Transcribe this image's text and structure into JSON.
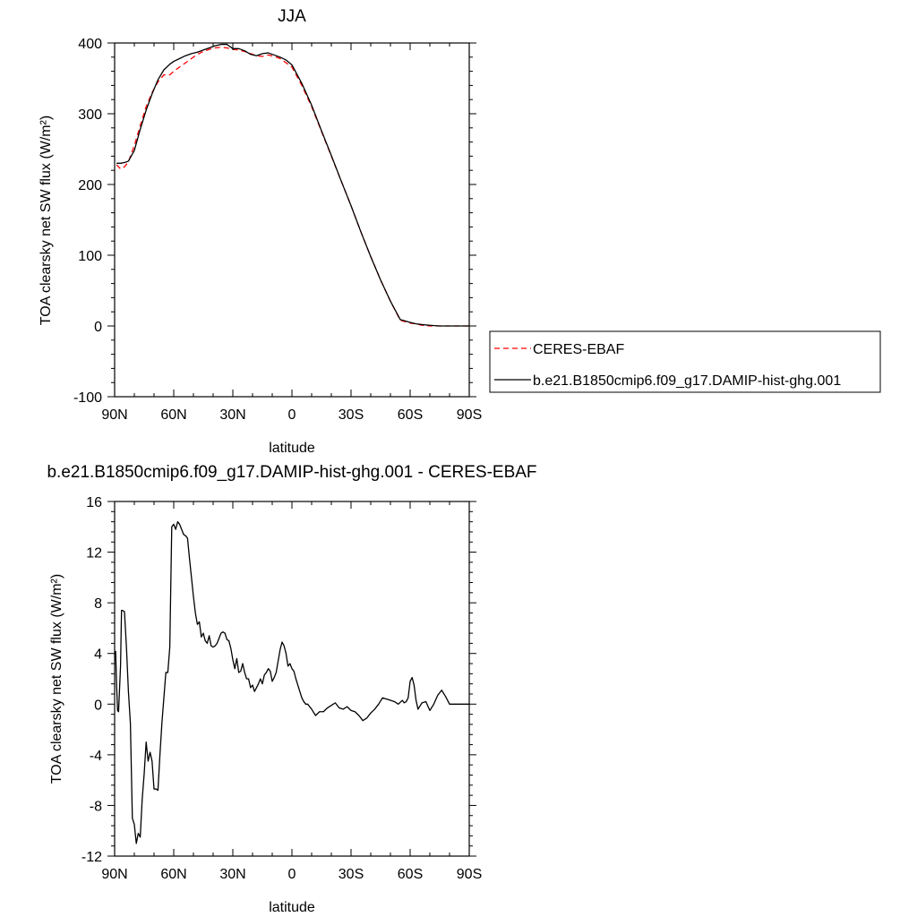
{
  "chart_data": [
    {
      "type": "line",
      "title": "JJA",
      "xlabel": "latitude",
      "ylabel": "TOA clearsky net SW flux (W/m²)",
      "xlim": [
        90,
        -90
      ],
      "ylim": [
        -100,
        400
      ],
      "x_ticks": [
        {
          "value": 90,
          "label": "90N"
        },
        {
          "value": 60,
          "label": "60N"
        },
        {
          "value": 30,
          "label": "30N"
        },
        {
          "value": 0,
          "label": "0"
        },
        {
          "value": -30,
          "label": "30S"
        },
        {
          "value": -60,
          "label": "60S"
        },
        {
          "value": -90,
          "label": "90S"
        }
      ],
      "y_ticks": [
        {
          "value": 400,
          "label": "400"
        },
        {
          "value": 300,
          "label": "300"
        },
        {
          "value": 200,
          "label": "200"
        },
        {
          "value": 100,
          "label": "100"
        },
        {
          "value": 0,
          "label": "0"
        },
        {
          "value": -100,
          "label": "-100"
        }
      ],
      "legend_position": "right",
      "series": [
        {
          "name": "CERES-EBAF",
          "color": "#ff0000",
          "dash": "dashed",
          "x": [
            89,
            87,
            85,
            83,
            80,
            77,
            74,
            71,
            68,
            65,
            62,
            60,
            57,
            54,
            51,
            48,
            45,
            42,
            39,
            36,
            33,
            30,
            27,
            24,
            21,
            18,
            15,
            12,
            9,
            6,
            3,
            0,
            -5,
            -10,
            -15,
            -20,
            -25,
            -30,
            -35,
            -40,
            -45,
            -50,
            -55,
            -60,
            -63,
            -66,
            -70,
            -75,
            -80,
            -85,
            -90
          ],
          "y": [
            228,
            222,
            225,
            232,
            255,
            283,
            310,
            330,
            345,
            355,
            355,
            360,
            366,
            372,
            378,
            384,
            388,
            391,
            393,
            394,
            393,
            391,
            390,
            388,
            385,
            382,
            381,
            383,
            381,
            378,
            372,
            366,
            340,
            310,
            275,
            240,
            205,
            170,
            133,
            98,
            65,
            35,
            8,
            4,
            3,
            1,
            0,
            0,
            0,
            0,
            0
          ]
        },
        {
          "name": "b.e21.B1850cmip6.f09_g17.DAMIP-hist-ghg.001",
          "color": "#000000",
          "dash": "solid",
          "x": [
            89,
            87,
            85,
            83,
            80,
            77,
            74,
            71,
            68,
            65,
            62,
            60,
            57,
            54,
            51,
            48,
            45,
            42,
            39,
            36,
            33,
            30,
            27,
            24,
            21,
            18,
            15,
            12,
            9,
            6,
            3,
            0,
            -5,
            -10,
            -15,
            -20,
            -25,
            -30,
            -35,
            -40,
            -45,
            -50,
            -55,
            -60,
            -63,
            -66,
            -70,
            -75,
            -80,
            -85,
            -90
          ],
          "y": [
            230,
            230,
            231,
            233,
            248,
            278,
            305,
            328,
            348,
            362,
            370,
            374,
            378,
            382,
            385,
            387,
            390,
            393,
            396,
            398,
            398,
            392,
            392,
            389,
            384,
            382,
            385,
            386,
            383,
            380,
            376,
            369,
            343,
            312,
            276,
            241,
            205,
            170,
            133,
            98,
            65,
            35,
            9,
            5,
            3,
            2,
            1,
            0,
            0,
            0,
            0
          ]
        }
      ]
    },
    {
      "type": "line",
      "title": "b.e21.B1850cmip6.f09_g17.DAMIP-hist-ghg.001 - CERES-EBAF",
      "xlabel": "latitude",
      "ylabel": "TOA clearsky net SW flux (W/m²)",
      "xlim": [
        90,
        -90
      ],
      "ylim": [
        -12,
        16
      ],
      "x_ticks": [
        {
          "value": 90,
          "label": "90N"
        },
        {
          "value": 60,
          "label": "60N"
        },
        {
          "value": 30,
          "label": "30N"
        },
        {
          "value": 0,
          "label": "0"
        },
        {
          "value": -30,
          "label": "30S"
        },
        {
          "value": -60,
          "label": "60S"
        },
        {
          "value": -90,
          "label": "90S"
        }
      ],
      "y_ticks": [
        {
          "value": 16,
          "label": "16"
        },
        {
          "value": 12,
          "label": "12"
        },
        {
          "value": 8,
          "label": "8"
        },
        {
          "value": 4,
          "label": "4"
        },
        {
          "value": 0,
          "label": "0"
        },
        {
          "value": -4,
          "label": "-4"
        },
        {
          "value": -8,
          "label": "-8"
        },
        {
          "value": -12,
          "label": "-12"
        }
      ],
      "series": [
        {
          "color": "#000000",
          "dash": "solid",
          "x": [
            89.5,
            89,
            88.5,
            88,
            87,
            86.5,
            86,
            85,
            84,
            83,
            82,
            81,
            80,
            79,
            78,
            77,
            76,
            75,
            74,
            73,
            72,
            71,
            70,
            69,
            68,
            67,
            66,
            65,
            64,
            63,
            62,
            61,
            60,
            59,
            58,
            57,
            56,
            55,
            54,
            53,
            52,
            51,
            50,
            49,
            48,
            47,
            46,
            45,
            44,
            43,
            42,
            41,
            40,
            39,
            38,
            37,
            36,
            35,
            34,
            33,
            32,
            31,
            30,
            29,
            28,
            27,
            26,
            25,
            24,
            23,
            22,
            21,
            20,
            19,
            18,
            17,
            16,
            15,
            14,
            13,
            12,
            11,
            10,
            9,
            8,
            7,
            6,
            5,
            4,
            3,
            2,
            1,
            0,
            -1,
            -2,
            -3,
            -4,
            -5,
            -6,
            -7,
            -8,
            -9,
            -10,
            -12,
            -14,
            -16,
            -18,
            -20,
            -22,
            -24,
            -26,
            -28,
            -30,
            -32,
            -34,
            -36,
            -38,
            -40,
            -42,
            -44,
            -46,
            -48,
            -50,
            -52,
            -54,
            -56,
            -57,
            -58,
            -59,
            -60,
            -61,
            -62,
            -63,
            -64,
            -66,
            -68,
            -70,
            -72,
            -74,
            -76,
            -78,
            -80,
            -82,
            -84,
            -86,
            -88,
            -90
          ],
          "y": [
            4.2,
            1.5,
            -0.5,
            -0.6,
            3.0,
            7.4,
            7.4,
            7.3,
            4.5,
            1.0,
            -1.5,
            -9.0,
            -9.5,
            -11.0,
            -10.2,
            -10.5,
            -7.5,
            -5.5,
            -3.0,
            -4.5,
            -3.8,
            -4.5,
            -6.7,
            -6.7,
            -6.8,
            -4.0,
            -1.5,
            0.5,
            2.5,
            2.5,
            4.5,
            14.0,
            14.2,
            13.8,
            14.4,
            14.2,
            13.8,
            13.4,
            13.3,
            13.1,
            11.5,
            10.0,
            8.5,
            7.2,
            6.3,
            6.5,
            5.3,
            5.6,
            5.0,
            4.8,
            5.4,
            4.6,
            4.5,
            4.6,
            4.8,
            5.2,
            5.6,
            5.7,
            5.6,
            5.1,
            5.0,
            4.4,
            3.5,
            2.8,
            3.6,
            2.5,
            2.6,
            3.2,
            2.5,
            2.0,
            2.0,
            1.3,
            1.5,
            1.0,
            1.3,
            1.6,
            2.0,
            1.6,
            2.3,
            2.5,
            2.8,
            2.6,
            1.8,
            2.1,
            2.5,
            3.4,
            4.3,
            4.9,
            4.6,
            4.0,
            3.0,
            3.2,
            2.8,
            2.6,
            2.0,
            1.5,
            1.0,
            0.5,
            0.2,
            0.0,
            0.0,
            -0.2,
            -0.4,
            -0.9,
            -0.6,
            -0.6,
            -0.3,
            -0.1,
            0.1,
            -0.3,
            -0.4,
            -0.2,
            -0.5,
            -0.6,
            -0.9,
            -1.3,
            -1.1,
            -0.7,
            -0.4,
            0.0,
            0.5,
            0.4,
            0.3,
            0.2,
            0.0,
            0.3,
            0.1,
            0.2,
            0.5,
            1.8,
            2.1,
            1.5,
            0.3,
            -0.4,
            0.1,
            0.2,
            -0.5,
            0.0,
            0.7,
            1.1,
            0.6,
            0.0,
            0.0,
            0.0,
            0.0,
            0.0,
            0.0
          ]
        }
      ]
    }
  ]
}
